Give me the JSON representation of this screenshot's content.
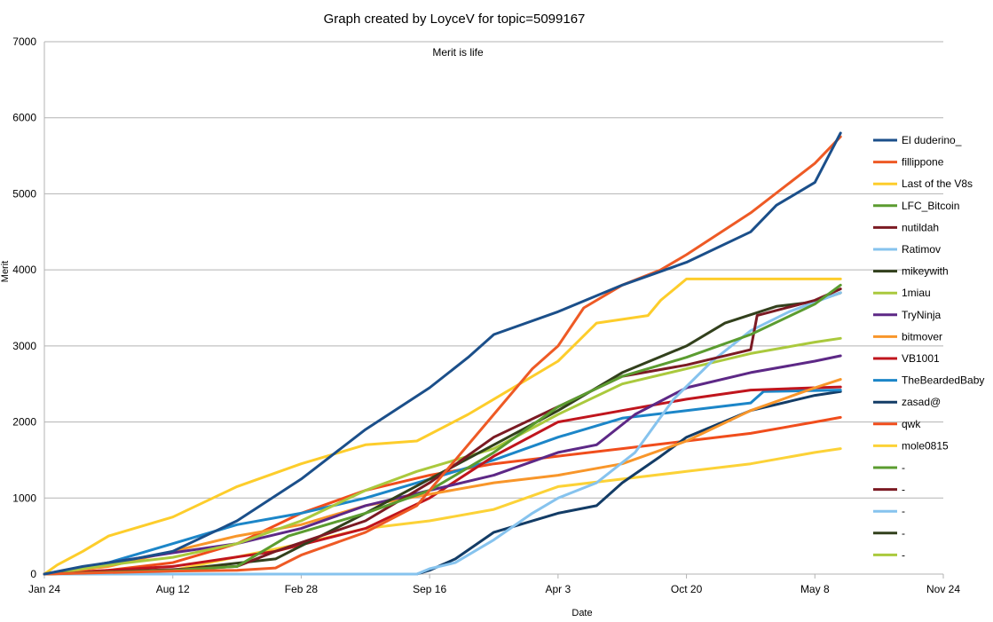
{
  "chart_data": {
    "type": "line",
    "title": "Graph created by LoyceV for topic=5099167",
    "subtitle": "Merit is life",
    "xlabel": "Date",
    "ylabel": "Merit",
    "x_ticks": [
      "Jan 24",
      "Aug 12",
      "Feb 28",
      "Sep 16",
      "Apr 3",
      "Oct 20",
      "May 8",
      "Nov 24"
    ],
    "xlim": [
      0,
      7
    ],
    "ylim": [
      0,
      7000
    ],
    "y_ticks": [
      0,
      1000,
      2000,
      3000,
      4000,
      5000,
      6000,
      7000
    ],
    "grid": true,
    "legend_position": "right",
    "series": [
      {
        "name": "El duderino_",
        "color": "#1b4f8a",
        "points": [
          [
            0,
            0
          ],
          [
            0.3,
            100
          ],
          [
            0.7,
            200
          ],
          [
            1,
            300
          ],
          [
            1.5,
            700
          ],
          [
            2,
            1250
          ],
          [
            2.5,
            1900
          ],
          [
            3,
            2450
          ],
          [
            3.3,
            2850
          ],
          [
            3.5,
            3150
          ],
          [
            4,
            3450
          ],
          [
            4.5,
            3800
          ],
          [
            5,
            4100
          ],
          [
            5.5,
            4500
          ],
          [
            5.7,
            4850
          ],
          [
            6,
            5150
          ],
          [
            6.2,
            5800
          ]
        ]
      },
      {
        "name": "fillippone",
        "color": "#ee5a25",
        "points": [
          [
            0,
            0
          ],
          [
            0.5,
            20
          ],
          [
            1,
            40
          ],
          [
            1.5,
            50
          ],
          [
            1.8,
            80
          ],
          [
            2,
            250
          ],
          [
            2.5,
            550
          ],
          [
            2.9,
            900
          ],
          [
            3,
            1100
          ],
          [
            3.5,
            2100
          ],
          [
            3.8,
            2700
          ],
          [
            4,
            3000
          ],
          [
            4.2,
            3500
          ],
          [
            4.5,
            3800
          ],
          [
            4.8,
            4000
          ],
          [
            5,
            4200
          ],
          [
            5.5,
            4750
          ],
          [
            6,
            5400
          ],
          [
            6.2,
            5750
          ]
        ]
      },
      {
        "name": "Last of the V8s",
        "color": "#fdcd2b",
        "points": [
          [
            0,
            0
          ],
          [
            0.1,
            120
          ],
          [
            0.3,
            300
          ],
          [
            0.5,
            500
          ],
          [
            1,
            750
          ],
          [
            1.5,
            1150
          ],
          [
            2,
            1450
          ],
          [
            2.5,
            1700
          ],
          [
            2.9,
            1750
          ],
          [
            3.3,
            2100
          ],
          [
            3.5,
            2300
          ],
          [
            4,
            2800
          ],
          [
            4.3,
            3300
          ],
          [
            4.7,
            3400
          ],
          [
            4.8,
            3600
          ],
          [
            5,
            3880
          ],
          [
            6.2,
            3880
          ]
        ]
      },
      {
        "name": "LFC_Bitcoin",
        "color": "#5b9c30",
        "points": [
          [
            0,
            0
          ],
          [
            1,
            50
          ],
          [
            1.5,
            100
          ],
          [
            1.9,
            500
          ],
          [
            2.5,
            800
          ],
          [
            3,
            1100
          ],
          [
            3.5,
            1600
          ],
          [
            4,
            2200
          ],
          [
            4.5,
            2600
          ],
          [
            5,
            2850
          ],
          [
            5.5,
            3150
          ],
          [
            6,
            3550
          ],
          [
            6.2,
            3800
          ]
        ]
      },
      {
        "name": "nutildah",
        "color": "#7b1a23",
        "points": [
          [
            0,
            0
          ],
          [
            1,
            60
          ],
          [
            1.5,
            100
          ],
          [
            1.8,
            300
          ],
          [
            2.5,
            700
          ],
          [
            3,
            1200
          ],
          [
            3.5,
            1800
          ],
          [
            4,
            2200
          ],
          [
            4.5,
            2600
          ],
          [
            5,
            2750
          ],
          [
            5.5,
            2950
          ],
          [
            5.55,
            3400
          ],
          [
            6,
            3600
          ],
          [
            6.2,
            3750
          ]
        ]
      },
      {
        "name": "Ratimov",
        "color": "#86c3ee",
        "points": [
          [
            0,
            0
          ],
          [
            2.9,
            0
          ],
          [
            3,
            70
          ],
          [
            3.2,
            150
          ],
          [
            3.5,
            450
          ],
          [
            3.8,
            800
          ],
          [
            4,
            1000
          ],
          [
            4.3,
            1200
          ],
          [
            4.6,
            1600
          ],
          [
            4.9,
            2300
          ],
          [
            5.2,
            2800
          ],
          [
            5.5,
            3200
          ],
          [
            5.8,
            3450
          ],
          [
            6.2,
            3700
          ]
        ]
      },
      {
        "name": "mikeywith",
        "color": "#32401c",
        "points": [
          [
            0,
            0
          ],
          [
            1,
            50
          ],
          [
            1.8,
            200
          ],
          [
            2.5,
            800
          ],
          [
            3,
            1250
          ],
          [
            3.5,
            1700
          ],
          [
            4,
            2150
          ],
          [
            4.5,
            2650
          ],
          [
            5,
            3000
          ],
          [
            5.3,
            3300
          ],
          [
            5.7,
            3520
          ],
          [
            6,
            3580
          ],
          [
            6.2,
            3700
          ]
        ]
      },
      {
        "name": "1miau",
        "color": "#aac93d",
        "points": [
          [
            0,
            0
          ],
          [
            0.5,
            120
          ],
          [
            1,
            220
          ],
          [
            1.5,
            400
          ],
          [
            2,
            700
          ],
          [
            2.5,
            1100
          ],
          [
            2.9,
            1350
          ],
          [
            3.5,
            1650
          ],
          [
            4,
            2100
          ],
          [
            4.5,
            2500
          ],
          [
            5,
            2700
          ],
          [
            5.5,
            2900
          ],
          [
            6,
            3050
          ],
          [
            6.2,
            3100
          ]
        ]
      },
      {
        "name": "TryNinja",
        "color": "#5d2886",
        "points": [
          [
            0,
            0
          ],
          [
            0.5,
            150
          ],
          [
            1,
            280
          ],
          [
            1.5,
            400
          ],
          [
            2,
            600
          ],
          [
            2.5,
            900
          ],
          [
            3,
            1100
          ],
          [
            3.5,
            1300
          ],
          [
            4,
            1600
          ],
          [
            4.3,
            1700
          ],
          [
            4.6,
            2100
          ],
          [
            5,
            2450
          ],
          [
            5.5,
            2650
          ],
          [
            6,
            2800
          ],
          [
            6.2,
            2870
          ]
        ]
      },
      {
        "name": "bitmover",
        "color": "#f8962a",
        "points": [
          [
            0,
            0
          ],
          [
            0.5,
            100
          ],
          [
            1,
            300
          ],
          [
            1.5,
            500
          ],
          [
            2,
            650
          ],
          [
            2.5,
            900
          ],
          [
            3,
            1050
          ],
          [
            3.5,
            1200
          ],
          [
            4,
            1300
          ],
          [
            4.5,
            1450
          ],
          [
            5,
            1750
          ],
          [
            5.5,
            2150
          ],
          [
            6,
            2450
          ],
          [
            6.2,
            2560
          ]
        ]
      },
      {
        "name": "VB1001",
        "color": "#c0151d",
        "points": [
          [
            0,
            0
          ],
          [
            1,
            100
          ],
          [
            1.8,
            300
          ],
          [
            2.5,
            600
          ],
          [
            3,
            1000
          ],
          [
            3.5,
            1550
          ],
          [
            4,
            2000
          ],
          [
            4.5,
            2150
          ],
          [
            5,
            2300
          ],
          [
            5.5,
            2420
          ],
          [
            6,
            2450
          ],
          [
            6.2,
            2460
          ]
        ]
      },
      {
        "name": "TheBeardedBaby",
        "color": "#1c86c8",
        "points": [
          [
            0,
            0
          ],
          [
            0.5,
            150
          ],
          [
            1,
            400
          ],
          [
            1.5,
            650
          ],
          [
            2,
            800
          ],
          [
            2.5,
            1000
          ],
          [
            3,
            1250
          ],
          [
            3.5,
            1500
          ],
          [
            4,
            1800
          ],
          [
            4.5,
            2050
          ],
          [
            5,
            2150
          ],
          [
            5.5,
            2250
          ],
          [
            5.6,
            2400
          ],
          [
            6.2,
            2420
          ]
        ]
      },
      {
        "name": "zasad@",
        "color": "#133c66",
        "points": [
          [
            0,
            0
          ],
          [
            2.9,
            0
          ],
          [
            3,
            50
          ],
          [
            3.2,
            200
          ],
          [
            3.5,
            550
          ],
          [
            4,
            800
          ],
          [
            4.3,
            900
          ],
          [
            4.5,
            1200
          ],
          [
            4.8,
            1550
          ],
          [
            5,
            1800
          ],
          [
            5.5,
            2150
          ],
          [
            6,
            2350
          ],
          [
            6.2,
            2400
          ]
        ]
      },
      {
        "name": "qwk",
        "color": "#f04d1c",
        "points": [
          [
            0,
            0
          ],
          [
            0.5,
            50
          ],
          [
            1,
            150
          ],
          [
            1.5,
            400
          ],
          [
            2,
            800
          ],
          [
            2.5,
            1100
          ],
          [
            3,
            1300
          ],
          [
            3.5,
            1450
          ],
          [
            4,
            1550
          ],
          [
            4.5,
            1650
          ],
          [
            5,
            1750
          ],
          [
            5.5,
            1850
          ],
          [
            6,
            2000
          ],
          [
            6.2,
            2060
          ]
        ]
      },
      {
        "name": "mole0815",
        "color": "#fcd237",
        "points": [
          [
            0,
            0
          ],
          [
            1,
            50
          ],
          [
            2,
            400
          ],
          [
            2.5,
            600
          ],
          [
            3,
            700
          ],
          [
            3.5,
            850
          ],
          [
            4,
            1150
          ],
          [
            4.5,
            1250
          ],
          [
            5,
            1350
          ],
          [
            5.5,
            1450
          ],
          [
            6,
            1600
          ],
          [
            6.2,
            1650
          ]
        ]
      }
    ],
    "extra_legend_entries": [
      {
        "name": "-",
        "color": "#5b9c30"
      },
      {
        "name": "-",
        "color": "#7b1a23"
      },
      {
        "name": "-",
        "color": "#86c3ee"
      },
      {
        "name": "-",
        "color": "#32401c"
      },
      {
        "name": "-",
        "color": "#aac93d"
      }
    ]
  }
}
